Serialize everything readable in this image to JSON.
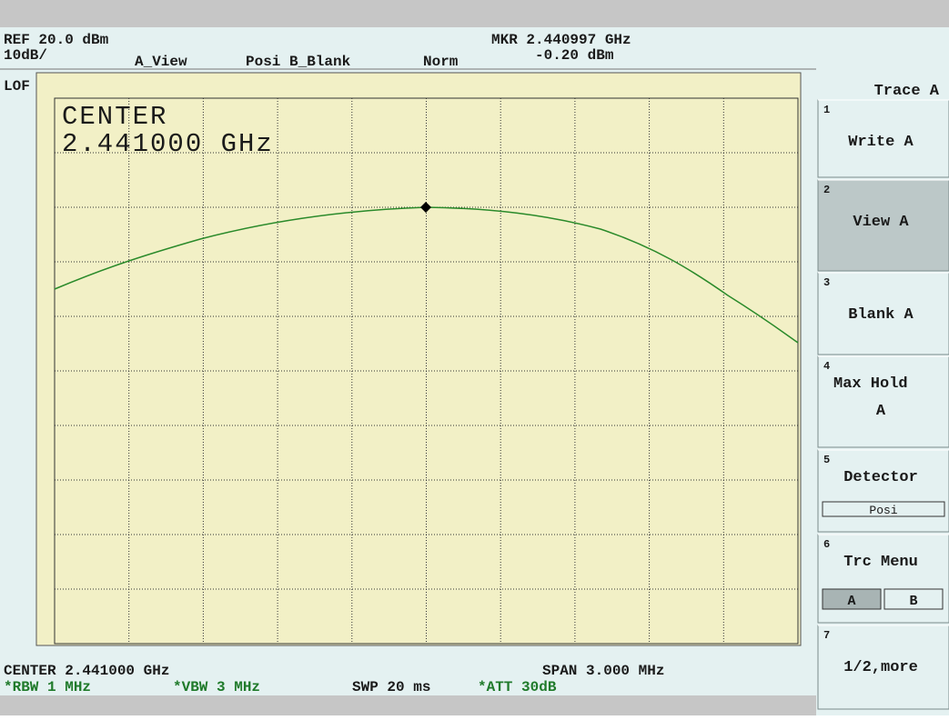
{
  "header": {
    "ref": "REF 20.0 dBm",
    "scale": "10dB/",
    "trace_a": "A_View",
    "detector": "Posi",
    "trace_b": "B_Blank",
    "mode": "Norm",
    "marker_freq": "MKR 2.440997 GHz",
    "marker_level": "-0.20 dBm",
    "lof": "LOF"
  },
  "annotation": {
    "center_label": "CENTER",
    "center_value": "2.441000 GHz"
  },
  "footer": {
    "center": "CENTER 2.441000 GHz",
    "span": "SPAN 3.000 MHz",
    "rbw": "*RBW 1 MHz",
    "vbw": "*VBW 3 MHz",
    "swp": "SWP 20 ms",
    "att": "*ATT 30dB"
  },
  "softkeys": {
    "title": "Trace A",
    "keys": [
      {
        "number": "1",
        "lines": [
          "Write A"
        ]
      },
      {
        "number": "2",
        "lines": [
          "View A"
        ]
      },
      {
        "number": "3",
        "lines": [
          "Blank A"
        ]
      },
      {
        "number": "4",
        "lines": [
          "Max Hold",
          "A"
        ]
      },
      {
        "number": "5",
        "lines": [
          "Detector"
        ],
        "option": "Posi"
      },
      {
        "number": "6",
        "lines": [
          "Trc Menu"
        ],
        "options": [
          "A",
          "B"
        ]
      },
      {
        "number": "7",
        "lines": [
          "1/2,more"
        ]
      }
    ]
  }
}
